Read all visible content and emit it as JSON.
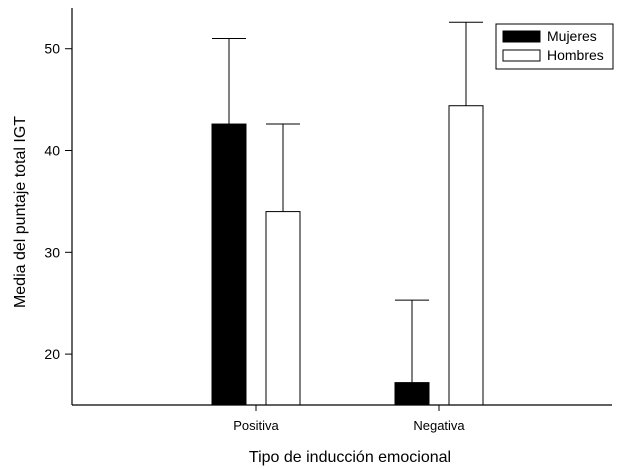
{
  "chart_data": {
    "type": "bar",
    "title": "",
    "xlabel": "Tipo de inducción emocional",
    "ylabel": "Media del puntaje total IGT",
    "categories": [
      "Positiva",
      "Negativa"
    ],
    "ylim": [
      15,
      54
    ],
    "yticks": [
      20,
      30,
      40,
      50
    ],
    "grid": false,
    "legend_position": "top-right",
    "error_bars": "upper",
    "series": [
      {
        "name": "Mujeres",
        "color": "#000000",
        "values": [
          42.6,
          17.2
        ],
        "error_upper": [
          51.0,
          25.3
        ]
      },
      {
        "name": "Hombres",
        "color": "#ffffff",
        "values": [
          34.0,
          44.4
        ],
        "error_upper": [
          42.6,
          52.6
        ]
      }
    ]
  }
}
